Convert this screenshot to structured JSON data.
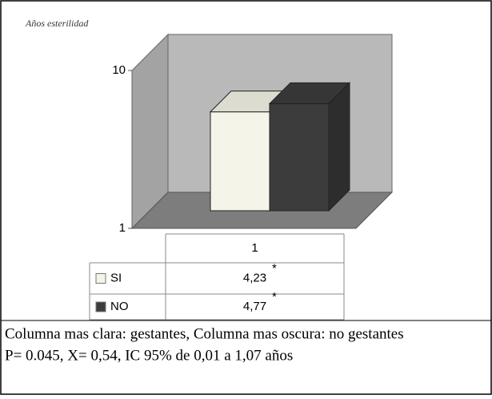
{
  "chart_data": {
    "type": "bar3d",
    "ylabel": "Años esterilidad",
    "categories": [
      "1"
    ],
    "series": [
      {
        "name": "SI",
        "color": "#f4f4e8",
        "values": [
          4.23
        ],
        "value_labels": [
          "4,23"
        ],
        "annotation": "*"
      },
      {
        "name": "NO",
        "color": "#3c3c3c",
        "values": [
          4.77
        ],
        "value_labels": [
          "4,77"
        ],
        "annotation": "*"
      }
    ],
    "ylim": [
      1,
      10
    ],
    "yticks": [
      1,
      10
    ],
    "yscale": "log",
    "caption": [
      "Columna mas clara: gestantes, Columna mas oscura: no gestantes",
      "P= 0.045, X= 0,54, IC 95% de 0,01 a 1,07 años"
    ]
  }
}
